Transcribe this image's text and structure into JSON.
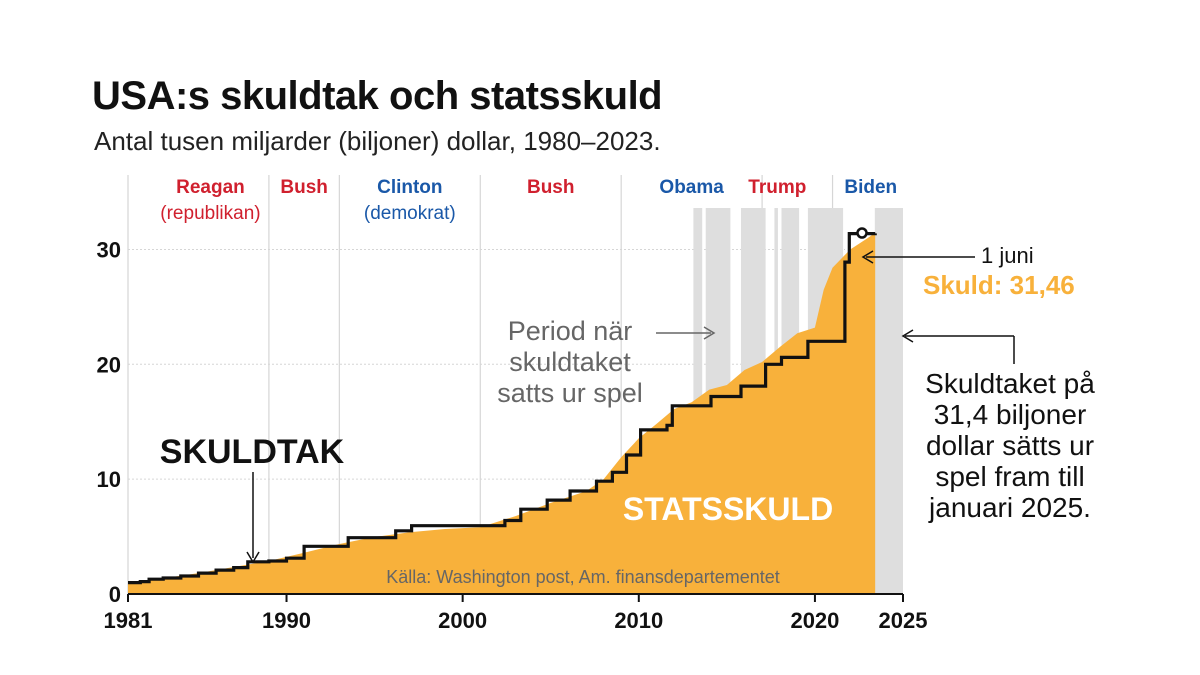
{
  "title": "USA:s skuldtak och statsskuld",
  "subtitle": "Antal tusen miljarder (biljoner) dollar, 1980–2023.",
  "colors": {
    "debt": "#f8b13b",
    "ceiling": "#111111",
    "republican": "#d0202e",
    "democrat": "#1a58a8",
    "suspended": "#dedede",
    "grid": "#d6d6d6"
  },
  "presidents": [
    {
      "name": "Reagan",
      "party": "(republikan)",
      "color": "#d0202e",
      "center": 1985
    },
    {
      "name": "Bush",
      "party": "",
      "color": "#d0202e",
      "center": 1991
    },
    {
      "name": "Clinton",
      "party": "(demokrat)",
      "color": "#1a58a8",
      "center": 1997
    },
    {
      "name": "Bush",
      "party": "",
      "color": "#d0202e",
      "center": 2005
    },
    {
      "name": "Obama",
      "party": "",
      "color": "#1a58a8",
      "center": 2013
    },
    {
      "name": "Trump",
      "party": "",
      "color": "#d0202e",
      "center": 2019
    },
    {
      "name": "Biden",
      "party": "",
      "color": "#1a58a8",
      "center": 2023
    }
  ],
  "annotations": {
    "ceiling_label": "SKULDTAK",
    "debt_label": "STATSSKULD",
    "suspended_line1": "Period när",
    "suspended_line2": "skuldtaket",
    "suspended_line3": "satts ur spel",
    "latest_date": "1 juni",
    "latest_value": "Skuld: 31,46",
    "note_line1": "Skuldtaket på",
    "note_line2": "31,4 biljoner",
    "note_line3": "dollar sätts ur",
    "note_line4": "spel fram till",
    "note_line5": "januari 2025.",
    "source": "Källa: Washington post, Am. finansdepartementet"
  },
  "chart_data": {
    "type": "area",
    "x_ticks": [
      "1981",
      "1990",
      "2000",
      "2010",
      "2020",
      "2025"
    ],
    "y_ticks": [
      "0",
      "10",
      "20",
      "30"
    ],
    "xlim": [
      1981,
      2025
    ],
    "ylim": [
      0,
      33
    ],
    "president_terms": [
      1981,
      1989,
      1993,
      2001,
      2009,
      2017,
      2021
    ],
    "suspension_periods": [
      [
        2013.1,
        2013.6
      ],
      [
        2013.8,
        2015.2
      ],
      [
        2015.8,
        2017.2
      ],
      [
        2017.7,
        2017.9
      ],
      [
        2018.1,
        2019.1
      ],
      [
        2019.6,
        2021.6
      ],
      [
        2023.4,
        2025.0
      ]
    ],
    "series": [
      {
        "name": "STATSSKULD",
        "x": [
          1981,
          1983,
          1985,
          1987,
          1989,
          1991,
          1993,
          1995,
          1997,
          1999,
          2001,
          2003,
          2005,
          2007,
          2008,
          2009,
          2010,
          2011,
          2012,
          2013,
          2014,
          2015,
          2016,
          2017,
          2018,
          2019,
          2020,
          2020.5,
          2021,
          2022,
          2023,
          2023.42
        ],
        "values": [
          0.99,
          1.38,
          1.82,
          2.35,
          2.87,
          3.6,
          4.35,
          4.97,
          5.37,
          5.66,
          5.81,
          6.78,
          7.93,
          8.95,
          9.99,
          11.9,
          13.56,
          14.8,
          16.1,
          16.7,
          17.8,
          18.2,
          19.5,
          20.2,
          21.5,
          22.7,
          23.2,
          26.5,
          28.4,
          30.0,
          31.0,
          31.46
        ]
      },
      {
        "name": "SKULDTAK",
        "x": [
          1981,
          1981.7,
          1982.2,
          1983,
          1984,
          1985,
          1986,
          1987,
          1987.8,
          1989,
          1990,
          1991,
          1993.5,
          1996.2,
          1997.1,
          2002.4,
          2003.3,
          2004.8,
          2006.1,
          2007.6,
          2008.5,
          2009.3,
          2010.1,
          2011.6,
          2011.9,
          2014.1,
          2015.8,
          2017.2,
          2018.1,
          2019.6,
          2021.7,
          2021.95,
          2023.42
        ],
        "values": [
          0.99,
          1.08,
          1.29,
          1.39,
          1.57,
          1.82,
          2.08,
          2.3,
          2.8,
          2.87,
          3.12,
          4.15,
          4.9,
          5.5,
          5.95,
          6.4,
          7.38,
          8.18,
          8.97,
          9.82,
          10.6,
          12.1,
          14.29,
          14.69,
          16.39,
          17.2,
          18.1,
          20.0,
          20.6,
          22.0,
          28.9,
          31.38,
          31.4
        ]
      }
    ]
  }
}
